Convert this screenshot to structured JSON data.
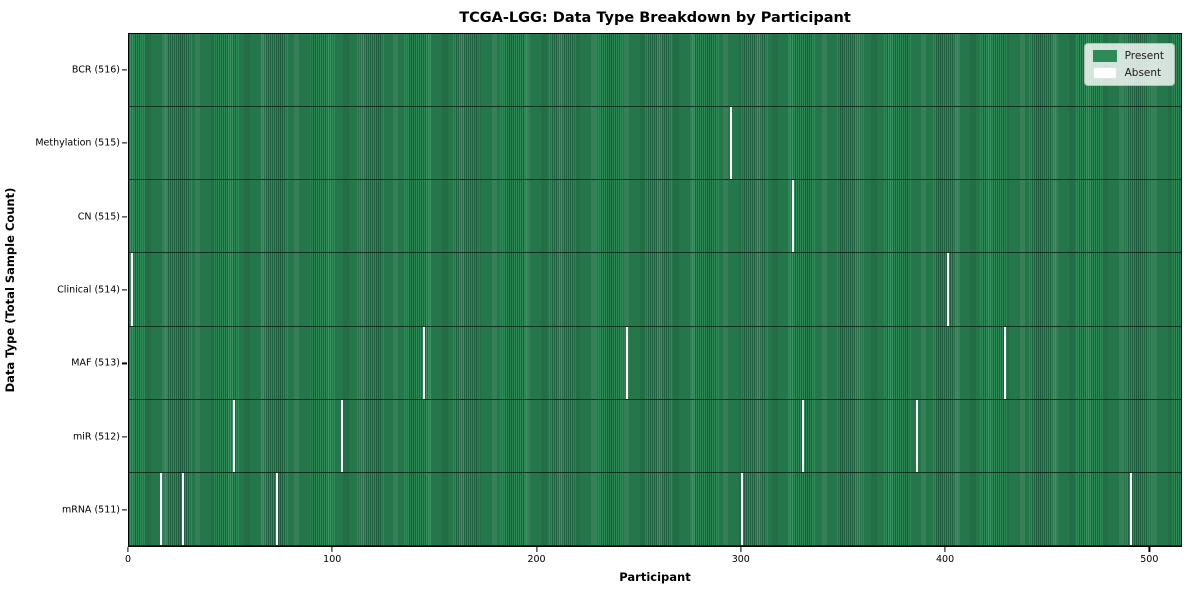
{
  "title": "TCGA-LGG: Data Type Breakdown by Participant",
  "xlabel": "Participant",
  "ylabel": "Data Type (Total Sample Count)",
  "legend": {
    "present_label": "Present",
    "absent_label": "Absent"
  },
  "colors": {
    "present": "#2e8b57",
    "present_edge": "#1f6040",
    "absent": "#ffffff",
    "legend_background": "#ebeeeb"
  },
  "chart_data": {
    "type": "heatmap",
    "title": "TCGA-LGG: Data Type Breakdown by Participant",
    "xlabel": "Participant",
    "ylabel": "Data Type (Total Sample Count)",
    "x_range": [
      0,
      516
    ],
    "x_ticks": [
      0,
      100,
      200,
      300,
      400,
      500
    ],
    "total_participants": 516,
    "grid": false,
    "legend_position": "upper right",
    "legend_entries": [
      "Present",
      "Absent"
    ],
    "rows": [
      {
        "label": "BCR (516)",
        "data_type": "BCR",
        "total_samples": 516,
        "absent_participants": []
      },
      {
        "label": "Methylation (515)",
        "data_type": "Methylation",
        "total_samples": 515,
        "absent_participants": [
          295
        ]
      },
      {
        "label": "CN (515)",
        "data_type": "CN",
        "total_samples": 515,
        "absent_participants": [
          325
        ]
      },
      {
        "label": "Clinical (514)",
        "data_type": "Clinical",
        "total_samples": 514,
        "absent_participants": [
          1,
          401
        ]
      },
      {
        "label": "MAF (513)",
        "data_type": "MAF",
        "total_samples": 513,
        "absent_participants": [
          144,
          244,
          429
        ]
      },
      {
        "label": "miR (512)",
        "data_type": "miR",
        "total_samples": 512,
        "absent_participants": [
          51,
          104,
          330,
          386
        ]
      },
      {
        "label": "mRNA (511)",
        "data_type": "mRNA",
        "total_samples": 511,
        "absent_participants": [
          15,
          26,
          72,
          300,
          491
        ]
      }
    ]
  }
}
